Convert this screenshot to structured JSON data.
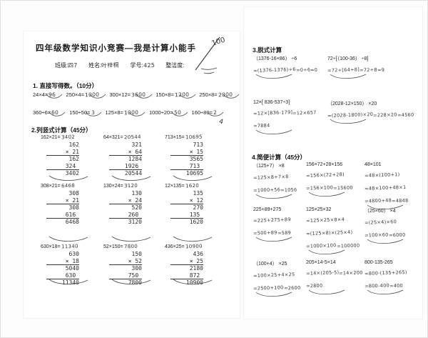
{
  "photo": {
    "stray_mark": "4"
  },
  "page1": {
    "title": "四年级数学知识小竞赛—我是计算小能手",
    "score_mark": "100",
    "info": {
      "class_label": "班级:",
      "class_value": "四7",
      "name_label": "姓名:",
      "name_value": "叶梓桐",
      "id_label": "学号:",
      "id_value": "425",
      "neat_label": "整洁度:"
    },
    "section1": {
      "heading": "1. 直接写得数。（10分）",
      "rows": [
        [
          {
            "q": "24×4=",
            "a": "96"
          },
          {
            "q": "250×4=",
            "a": "1000"
          },
          {
            "q": "300×12=",
            "a": "3600"
          },
          {
            "q": "150×8=",
            "a": "1200"
          },
          {
            "q": "250×8=",
            "a": "2000"
          }
        ],
        [
          {
            "q": "360÷6=",
            "a": "60"
          },
          {
            "q": "150÷50=",
            "a": "3"
          },
          {
            "q": "125×8=",
            "a": "1000"
          },
          {
            "q": "1000÷20=",
            "a": "50"
          },
          {
            "q": "160÷80=",
            "a": "2"
          }
        ]
      ]
    },
    "section2": {
      "heading": "2.列竖式计算（45分）",
      "problems": [
        {
          "eq": "162×21=",
          "ans": "3402",
          "work": [
            "162",
            "× 21",
            "162",
            "324 ",
            "3402"
          ]
        },
        {
          "eq": "64×321=",
          "ans": "20544",
          "work": [
            "321",
            "× 64",
            "1284",
            "1926 ",
            "20544"
          ]
        },
        {
          "eq": "713×15=",
          "ans": "10695",
          "work": [
            "713",
            "× 15",
            "3565",
            "713 ",
            "10695"
          ]
        },
        {
          "eq": "308×21=",
          "ans": "6468",
          "work": [
            "308",
            "× 21",
            "308",
            "616 ",
            "6468"
          ]
        },
        {
          "eq": "130×24=",
          "ans": "3120",
          "work": [
            "130",
            "× 24",
            "520",
            "260 ",
            "3120"
          ]
        },
        {
          "eq": "12×135=",
          "ans": "1620",
          "work": [
            "135",
            "× 12",
            "270",
            "135 ",
            "1620"
          ]
        },
        {
          "eq": "630×18=",
          "ans": "11340",
          "work": [
            "630",
            "× 18",
            "5040",
            "630 ",
            "11340"
          ]
        },
        {
          "eq": "52×150=",
          "ans": "7800",
          "work": [
            "150",
            "× 52",
            "300",
            "750 ",
            "7800"
          ]
        },
        {
          "eq": "436×25=",
          "ans": "10900",
          "work": [
            "436",
            "× 25",
            "2180",
            "872 ",
            "10900"
          ]
        }
      ]
    }
  },
  "page2": {
    "section3": {
      "heading": "3.脱式计算",
      "problems": [
        {
          "expr": "（1376-16×86） ÷6",
          "steps": [
            "=(1376-1376)÷6",
            "=0÷6",
            "=0"
          ]
        },
        {
          "expr": "72÷[（100-36） ÷8]",
          "steps": [
            "=72÷[64÷8]",
            "=72÷8",
            "=9"
          ]
        },
        {
          "expr": "12×[ 836-537÷3]",
          "steps": [
            "=12×[836-179]",
            "=12×657",
            "=7884"
          ]
        },
        {
          "expr": "（2028-12×150） ×20",
          "steps": [
            "=(2028-1800)×20",
            "=228×20",
            "=4560"
          ]
        }
      ]
    },
    "section4": {
      "heading": "4.简便计算（45分）",
      "problems": [
        {
          "expr": "（125+7） ×8",
          "steps": [
            "=125×8+7×8",
            "=1000+56",
            "=1056"
          ]
        },
        {
          "expr": "156×72+28×156",
          "steps": [
            "=156×(72+28)",
            "=156×100",
            "=15600"
          ]
        },
        {
          "expr": "48×101",
          "steps": [
            "=48×(100+1)",
            "=48×100+48×1",
            "=4800+48",
            "=4848"
          ]
        },
        {
          "expr": "225+89+275",
          "steps": [
            "=225+275+89",
            "=500+89",
            "=589"
          ]
        },
        {
          "expr": "125×25×32",
          "steps": [
            "=125×25×8×4",
            "=(125×8)×(25×4)",
            "=1000×100",
            "=100000"
          ]
        },
        {
          "expr": "（25×60） ×4",
          "steps": [
            "=(25×4)×60",
            "=100×60",
            "=6000"
          ]
        },
        {
          "expr": "（100+4） ×25",
          "steps": [
            "=100×25+4×25",
            "=2500+100",
            "=2600"
          ]
        },
        {
          "expr": "205×14-5×14",
          "steps": [
            "=14×(205-5)",
            "=14×200",
            "=2800"
          ]
        },
        {
          "expr": "800-135-265",
          "steps": [
            "=800-(135+265)",
            "=800-400",
            "=400"
          ]
        }
      ]
    }
  }
}
